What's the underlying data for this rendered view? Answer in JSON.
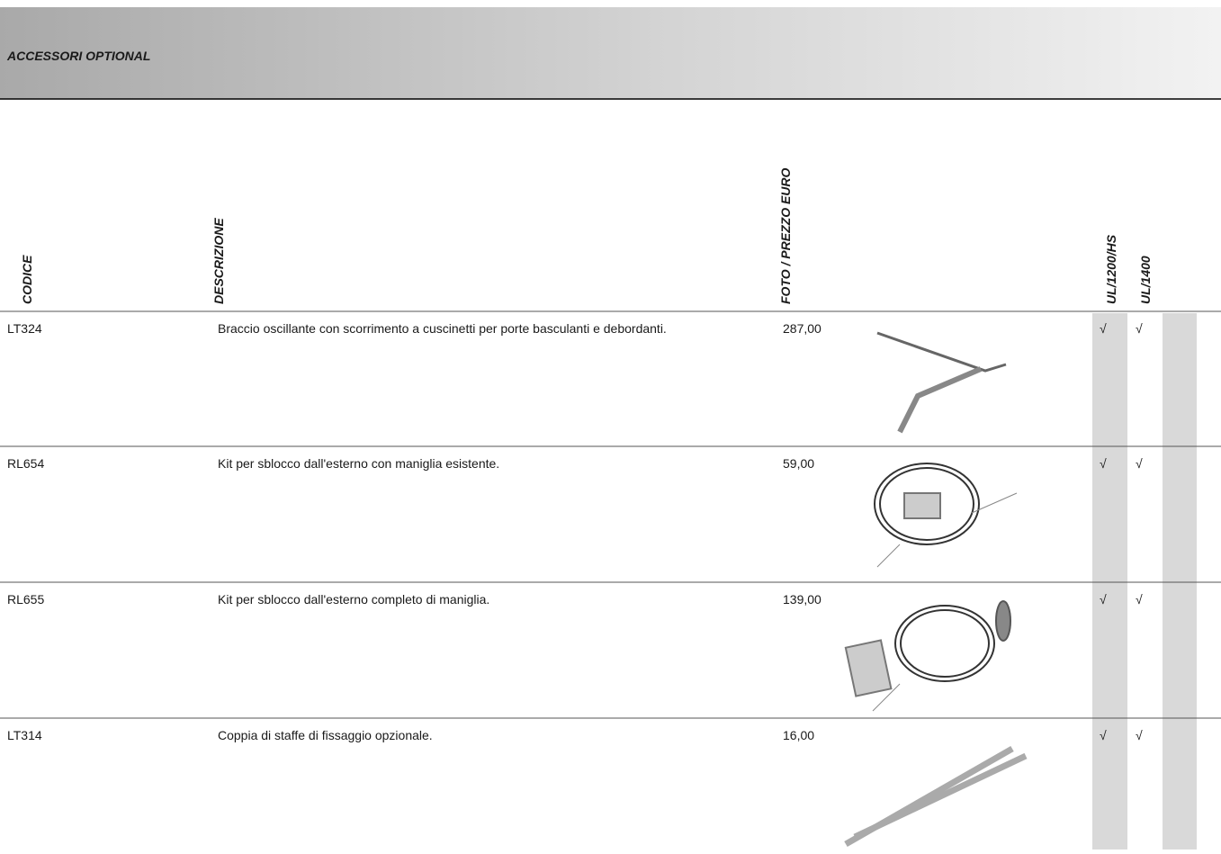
{
  "header": {
    "title": "ACCESSORI OPTIONAL"
  },
  "table": {
    "columns": [
      "CODICE",
      "DESCRIZIONE",
      "FOTO / PREZZO EURO",
      "UL/1200/HS",
      "UL/1400"
    ],
    "rows": [
      [
        "LT324",
        "Braccio oscillante con scorrimento a cuscinetti per porte basculanti e debordanti.",
        "287,00",
        "√",
        "√"
      ],
      [
        "RL654",
        "Kit per sblocco dall'esterno con maniglia esistente.",
        "59,00",
        "√",
        "√"
      ],
      [
        "RL655",
        "Kit per sblocco dall'esterno completo di maniglia.",
        "139,00",
        "√",
        "√"
      ],
      [
        "LT314",
        "Coppia di staffe di fissaggio opzionale.",
        "16,00",
        "√",
        "√"
      ]
    ]
  }
}
